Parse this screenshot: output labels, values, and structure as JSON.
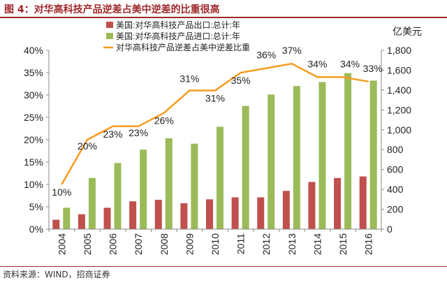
{
  "figure_title": "图 4：对华高科技产品逆差占美中逆差的比重很高",
  "source_note": "资料来源：WIND，招商证券",
  "colors": {
    "export": "#c0504d",
    "import": "#9bbb59",
    "ratio": "#f79b1f",
    "frame": "#a0282a"
  },
  "chart_data": {
    "type": "bar",
    "categories": [
      "2004",
      "2005",
      "2006",
      "2007",
      "2008",
      "2009",
      "2010",
      "2011",
      "2012",
      "2013",
      "2014",
      "2015",
      "2016"
    ],
    "series": [
      {
        "name": "美国:对华高科技产品出口:总计:年",
        "axis": "right",
        "type": "bar",
        "values": [
          95,
          150,
          215,
          280,
          295,
          260,
          300,
          320,
          320,
          385,
          475,
          515,
          530
        ]
      },
      {
        "name": "美国:对华高科技产品进口:总计:年",
        "axis": "right",
        "type": "bar",
        "values": [
          215,
          515,
          665,
          800,
          915,
          860,
          1030,
          1240,
          1355,
          1440,
          1480,
          1570,
          1495
        ]
      },
      {
        "name": "对华高科技产品逆差占美中逆差比重",
        "axis": "left",
        "type": "line",
        "values": [
          10,
          20,
          23,
          23,
          26,
          31,
          31,
          35,
          36,
          37,
          34,
          34,
          33
        ],
        "labels": [
          "10%",
          "20%",
          "23%",
          "23%",
          "26%",
          "31%",
          "31%",
          "35%",
          "36%",
          "37%",
          "34%",
          "34%",
          "33%"
        ]
      }
    ],
    "y_left": {
      "ylim": [
        0,
        40
      ],
      "ticks": [
        "0%",
        "5%",
        "10%",
        "15%",
        "20%",
        "25%",
        "30%",
        "35%",
        "40%"
      ]
    },
    "y_right": {
      "ylim": [
        0,
        1800
      ],
      "unit": "亿美元",
      "ticks": [
        "0",
        "200",
        "400",
        "600",
        "800",
        "1,000",
        "1,200",
        "1,400",
        "1,600",
        "1,800"
      ]
    },
    "legend_position": "top-center",
    "grid": false
  }
}
